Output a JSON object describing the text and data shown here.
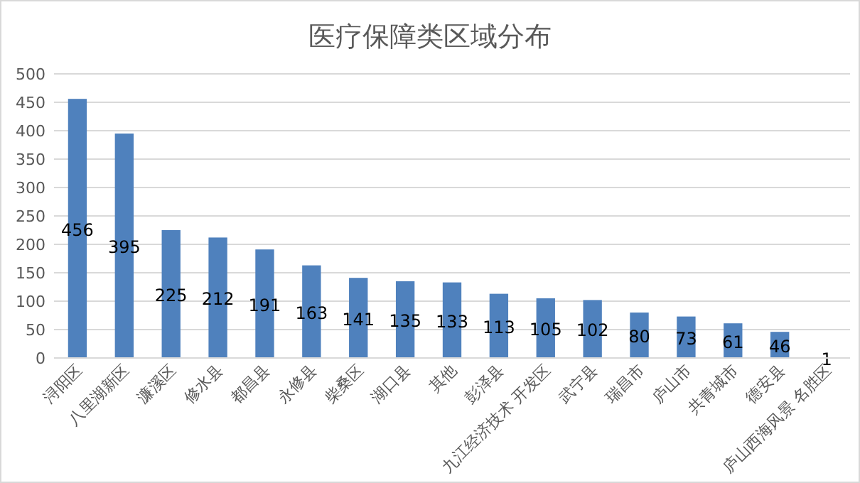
{
  "chart_data": {
    "type": "bar",
    "title": "医疗保障类区域分布",
    "categories": [
      "浔阳区",
      "八里湖新区",
      "濂溪区",
      "修水县",
      "都昌县",
      "永修县",
      "柴桑区",
      "湖口县",
      "其他",
      "彭泽县",
      "九江经济技术 开发区",
      "武宁县",
      "瑞昌市",
      "庐山市",
      "共青城市",
      "德安县",
      "庐山西海风景 名胜区"
    ],
    "values": [
      456,
      395,
      225,
      212,
      191,
      163,
      141,
      135,
      133,
      113,
      105,
      102,
      80,
      73,
      61,
      46,
      1
    ],
    "color": "#4f81bd",
    "ylim": [
      0,
      500
    ],
    "yticks": [
      0,
      50,
      100,
      150,
      200,
      250,
      300,
      350,
      400,
      450,
      500
    ],
    "grid": "y",
    "data_labels": true
  }
}
